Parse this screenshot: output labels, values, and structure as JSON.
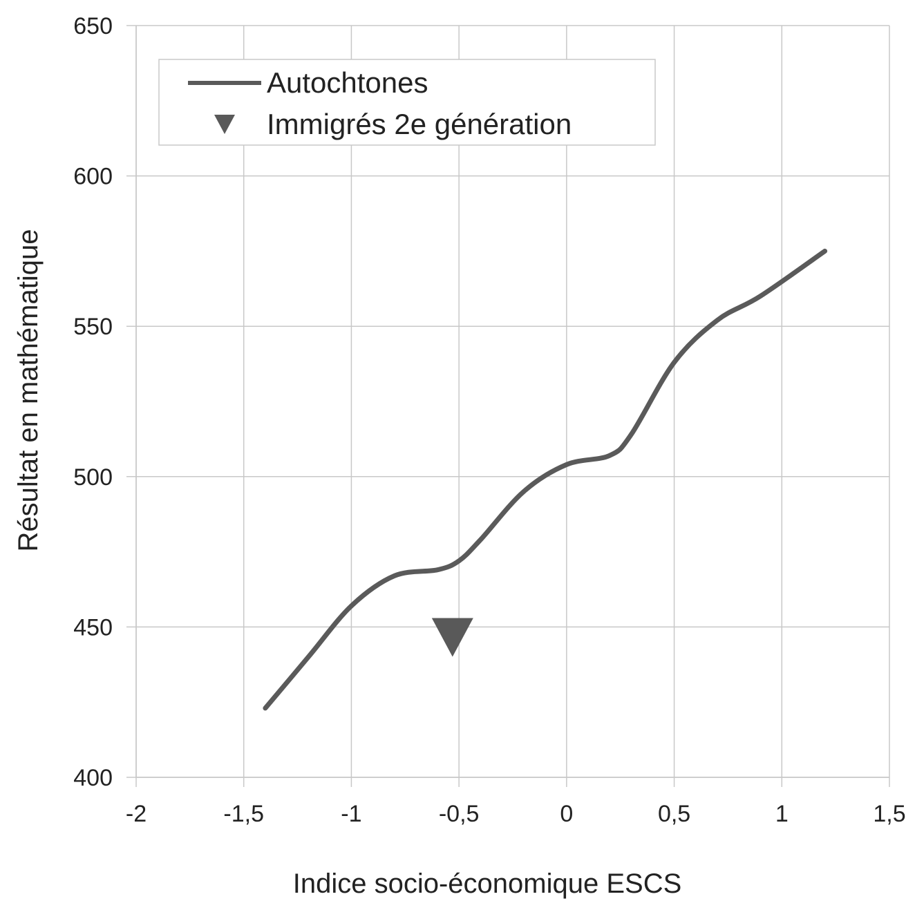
{
  "chart_data": {
    "type": "line",
    "xlabel": "Indice socio-économique ESCS",
    "ylabel": "Résultat en mathématique",
    "xlim": [
      -2,
      1.5
    ],
    "ylim": [
      400,
      650
    ],
    "x_ticks": [
      -2,
      -1.5,
      -1,
      -0.5,
      0,
      0.5,
      1,
      1.5
    ],
    "x_tick_labels": [
      "-2",
      "-1,5",
      "-1",
      "-0,5",
      "0",
      "0,5",
      "1",
      "1,5"
    ],
    "y_ticks": [
      400,
      450,
      500,
      550,
      600,
      650
    ],
    "y_tick_labels": [
      "400",
      "450",
      "500",
      "550",
      "600",
      "650"
    ],
    "grid": true,
    "legend_position": "top-left",
    "colors": {
      "line": "#5a5a5a",
      "marker": "#595959",
      "grid": "#c8c8c8",
      "text": "#222222"
    },
    "series": [
      {
        "name": "Autochtones",
        "kind": "line",
        "x": [
          -1.4,
          -1.2,
          -1.0,
          -0.8,
          -0.6,
          -0.5,
          -0.4,
          -0.2,
          0.0,
          0.2,
          0.3,
          0.5,
          0.7,
          0.9,
          1.2
        ],
        "y": [
          423,
          440,
          457,
          467,
          469,
          472,
          479,
          495,
          504,
          507,
          514,
          538,
          552,
          560,
          575
        ]
      },
      {
        "name": "Immigrés 2e génération",
        "kind": "marker",
        "marker": "triangle-down",
        "x": [
          -0.53
        ],
        "y": [
          447
        ]
      }
    ]
  }
}
